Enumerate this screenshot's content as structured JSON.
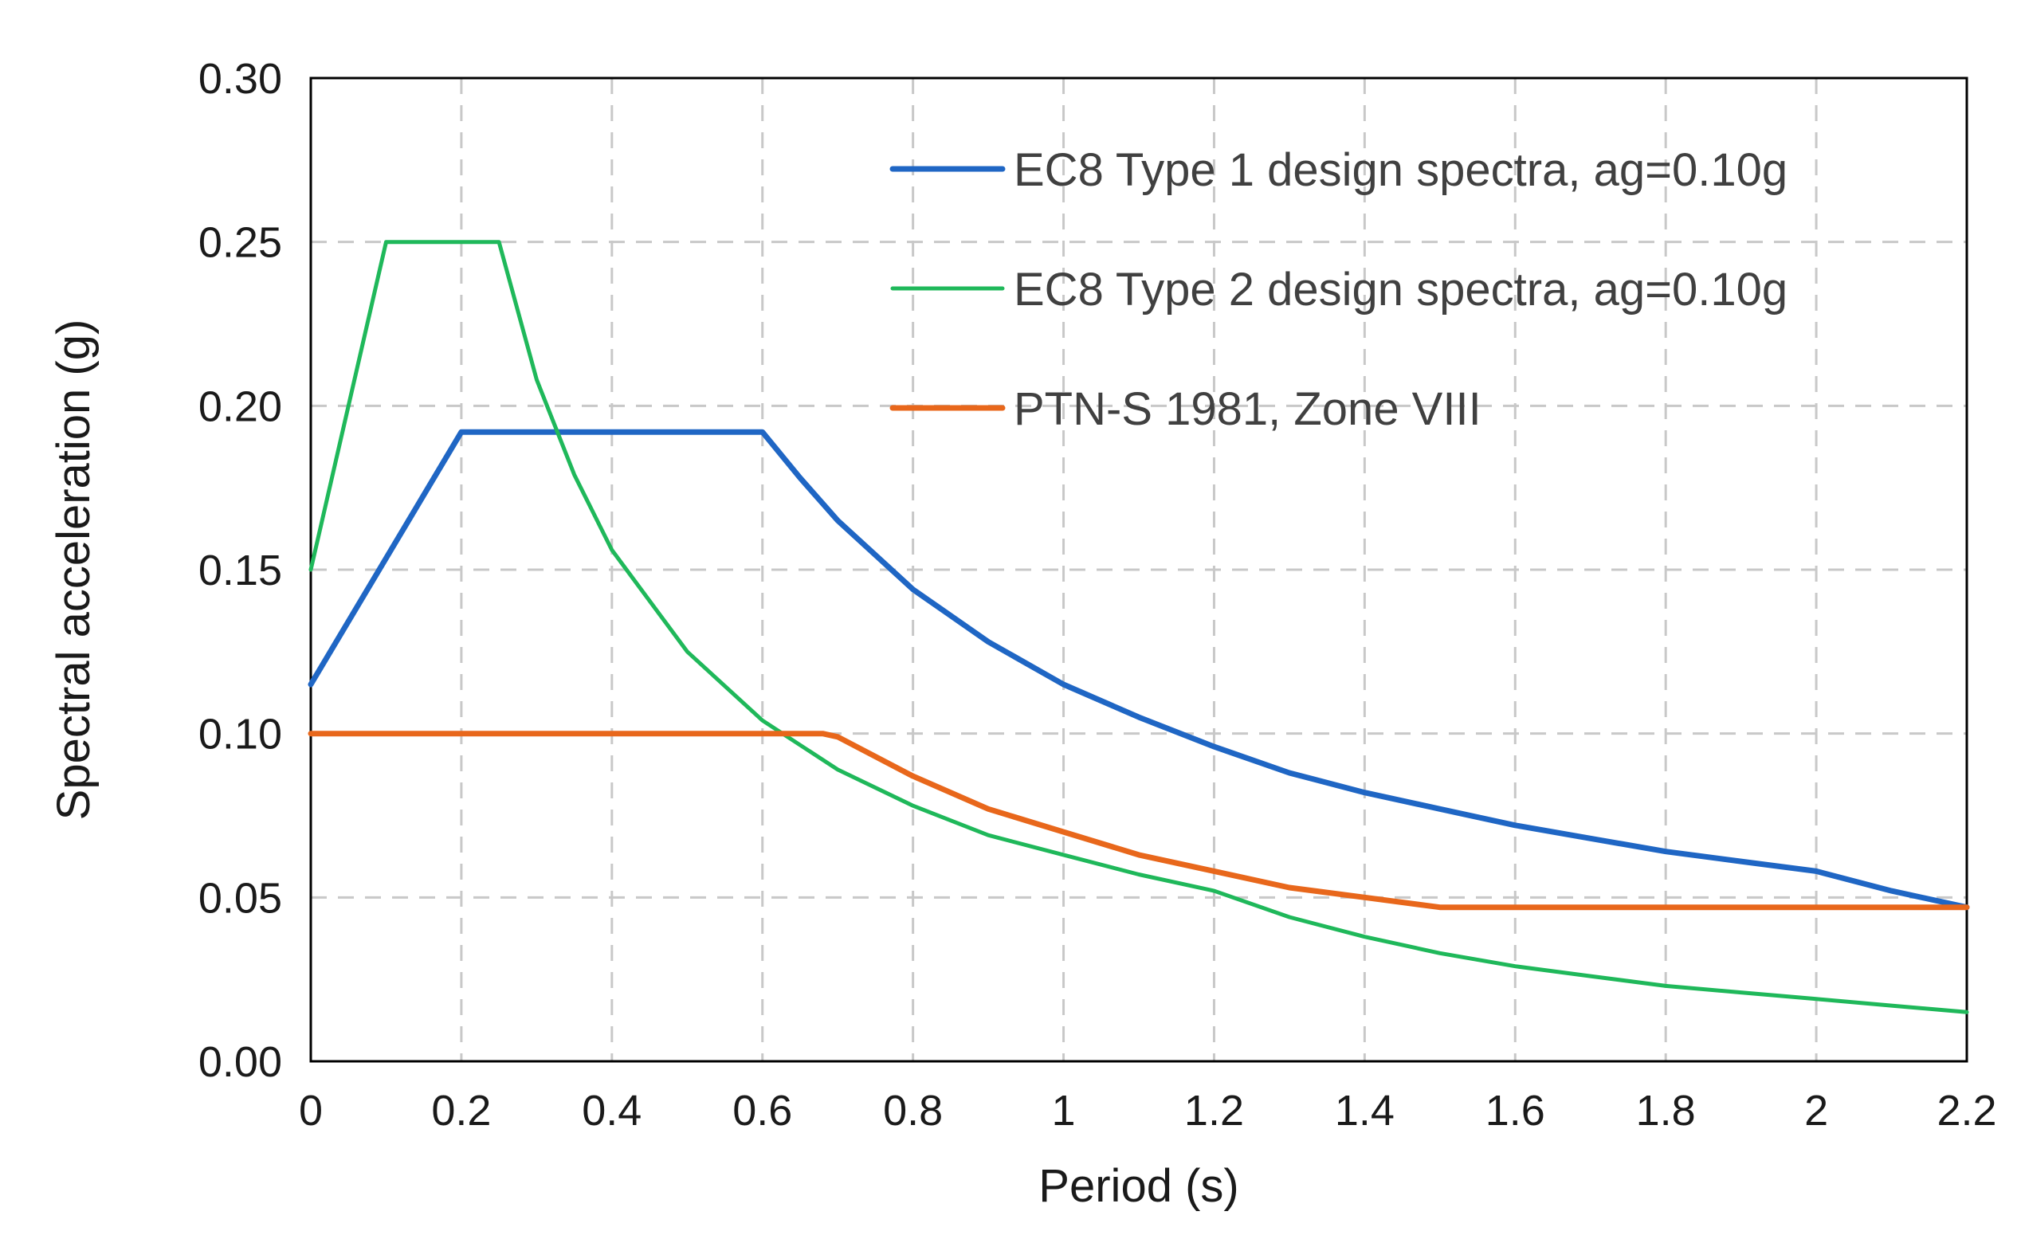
{
  "chart_data": {
    "type": "line",
    "title": "",
    "xlabel": "Period (s)",
    "ylabel": "Spectral acceleration (g)",
    "xlim": [
      0,
      2.2
    ],
    "ylim": [
      0,
      0.3
    ],
    "xticks": [
      "0",
      "0.2",
      "0.4",
      "0.6",
      "0.8",
      "1",
      "1.2",
      "1.4",
      "1.6",
      "1.8",
      "2",
      "2.2"
    ],
    "yticks": [
      "0.00",
      "0.05",
      "0.10",
      "0.15",
      "0.20",
      "0.25",
      "0.30"
    ],
    "grid": "dashed",
    "legend_position": "top-right",
    "series": [
      {
        "name": "EC8 Type 1 design spectra, ag=0.10g",
        "color": "#1f66c4",
        "x": [
          0,
          0.2,
          0.58,
          0.6,
          0.65,
          0.7,
          0.8,
          0.9,
          1.0,
          1.1,
          1.2,
          1.3,
          1.4,
          1.5,
          1.6,
          1.7,
          1.8,
          1.9,
          2.0,
          2.1,
          2.2
        ],
        "values": [
          0.115,
          0.192,
          0.192,
          0.192,
          0.178,
          0.165,
          0.144,
          0.128,
          0.115,
          0.105,
          0.096,
          0.088,
          0.082,
          0.077,
          0.072,
          0.068,
          0.064,
          0.061,
          0.058,
          0.052,
          0.047
        ]
      },
      {
        "name": "EC8 Type 2 design spectra, ag=0.10g",
        "color": "#1fb85a",
        "x": [
          0,
          0.1,
          0.25,
          0.3,
          0.35,
          0.4,
          0.5,
          0.6,
          0.7,
          0.8,
          0.9,
          1.0,
          1.1,
          1.2,
          1.3,
          1.4,
          1.5,
          1.6,
          1.7,
          1.8,
          1.9,
          2.0,
          2.1,
          2.2
        ],
        "values": [
          0.15,
          0.25,
          0.25,
          0.208,
          0.179,
          0.156,
          0.125,
          0.104,
          0.089,
          0.078,
          0.069,
          0.063,
          0.057,
          0.052,
          0.044,
          0.038,
          0.033,
          0.029,
          0.026,
          0.023,
          0.021,
          0.019,
          0.017,
          0.015
        ]
      },
      {
        "name": "PTN-S 1981, Zone VIII",
        "color": "#e8671b",
        "x": [
          0,
          0.68,
          0.7,
          0.8,
          0.9,
          1.0,
          1.1,
          1.2,
          1.3,
          1.4,
          1.5,
          1.6,
          1.8,
          2.0,
          2.2
        ],
        "values": [
          0.1,
          0.1,
          0.099,
          0.087,
          0.077,
          0.07,
          0.063,
          0.058,
          0.053,
          0.05,
          0.047,
          0.047,
          0.047,
          0.047,
          0.047
        ]
      }
    ]
  }
}
